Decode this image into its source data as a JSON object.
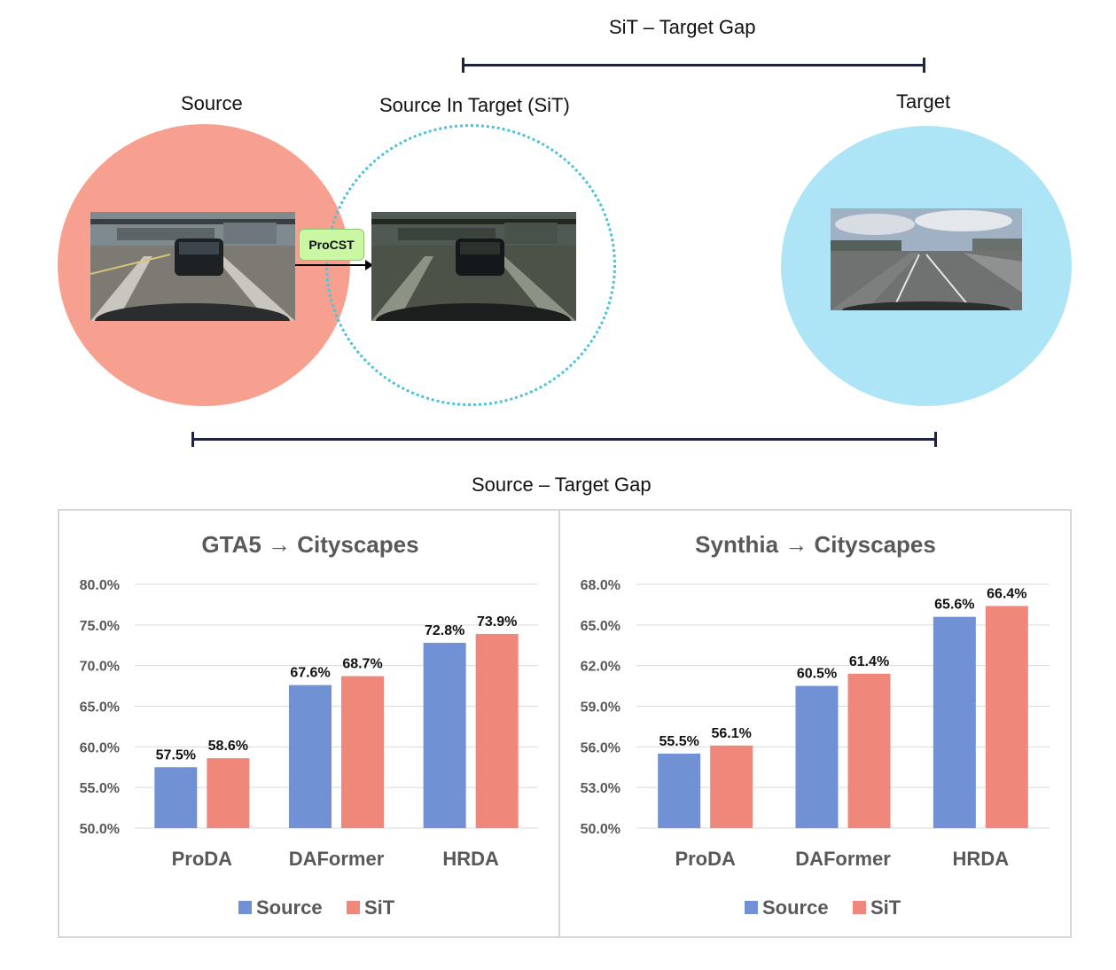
{
  "diagram": {
    "source_label": "Source",
    "sit_label": "Source In Target (SiT)",
    "target_label": "Target",
    "sit_target_gap": "SiT – Target Gap",
    "source_target_gap": "Source – Target Gap",
    "procst_label": "ProCST",
    "colors": {
      "source": "#f8a090",
      "sit_border": "#4cc2dd",
      "target": "#aee5f6"
    }
  },
  "chart_data": [
    {
      "type": "bar",
      "title": "GTA5 → Cityscapes",
      "categories": [
        "ProDA",
        "DAFormer",
        "HRDA"
      ],
      "series": [
        {
          "name": "Source",
          "values": [
            57.5,
            67.6,
            72.8
          ],
          "color": "#7092d4"
        },
        {
          "name": "SiT",
          "values": [
            58.6,
            68.7,
            73.9
          ],
          "color": "#f0877b"
        }
      ],
      "ylim": [
        50,
        80
      ],
      "yticks": [
        50,
        55,
        60,
        65,
        70,
        75,
        80
      ],
      "ytick_labels": [
        "50.0%",
        "55.0%",
        "60.0%",
        "65.0%",
        "70.0%",
        "75.0%",
        "80.0%"
      ],
      "value_labels": [
        [
          "57.5%",
          "67.6%",
          "72.8%"
        ],
        [
          "58.6%",
          "68.7%",
          "73.9%"
        ]
      ],
      "grid": true,
      "legend": "bottom"
    },
    {
      "type": "bar",
      "title": "Synthia → Cityscapes",
      "categories": [
        "ProDA",
        "DAFormer",
        "HRDA"
      ],
      "series": [
        {
          "name": "Source",
          "values": [
            55.5,
            60.5,
            65.6
          ],
          "color": "#7092d4"
        },
        {
          "name": "SiT",
          "values": [
            56.1,
            61.4,
            66.4
          ],
          "color": "#f0877b"
        }
      ],
      "ylim": [
        50,
        68
      ],
      "yticks": [
        50,
        53,
        56,
        59,
        62,
        65,
        68
      ],
      "ytick_labels": [
        "50.0%",
        "53.0%",
        "56.0%",
        "59.0%",
        "62.0%",
        "65.0%",
        "68.0%"
      ],
      "value_labels": [
        [
          "55.5%",
          "60.5%",
          "65.6%"
        ],
        [
          "56.1%",
          "61.4%",
          "66.4%"
        ]
      ],
      "grid": true,
      "legend": "bottom"
    }
  ]
}
